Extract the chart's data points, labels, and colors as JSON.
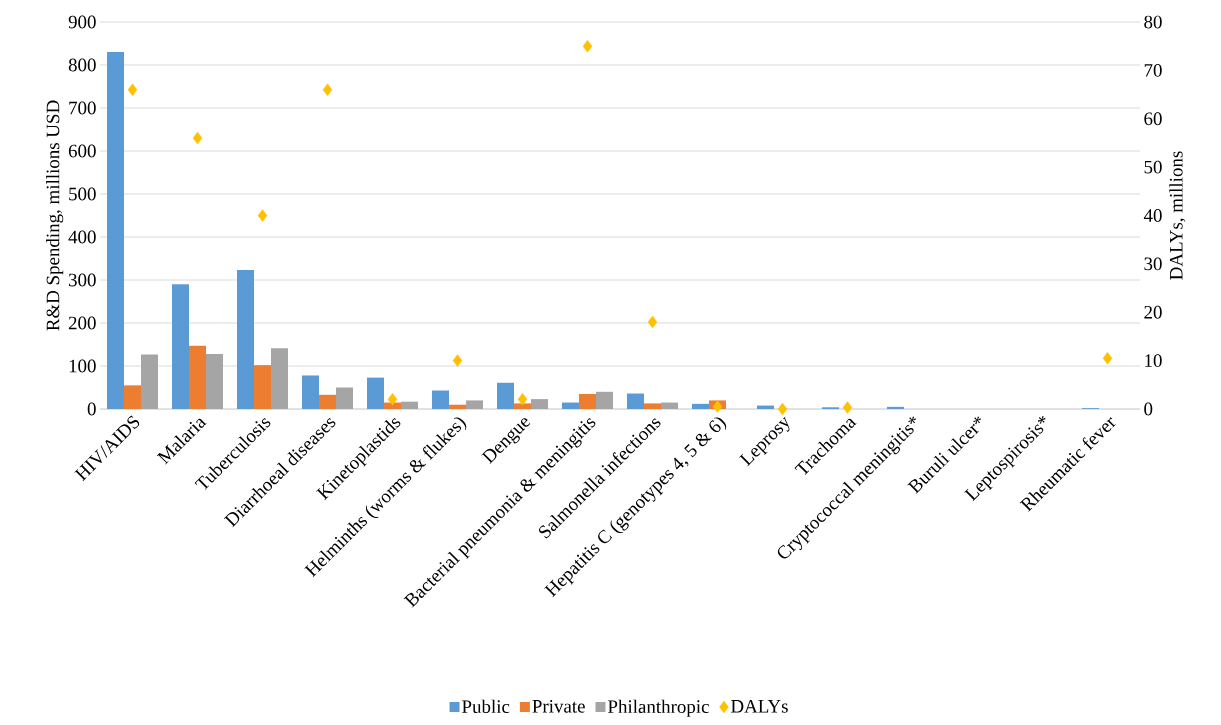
{
  "chart_data": {
    "type": "bar",
    "ylabel": "R&D Spending, millions USD",
    "y2label": "DALYs, millions",
    "categories": [
      "HIV/AIDS",
      "Malaria",
      "Tuberculosis",
      "Diarrhoeal diseases",
      "Kinetoplastids",
      "Helminths (worms & flukes)",
      "Dengue",
      "Bacterial pneumonia & meningitis",
      "Salmonella infections",
      "Hepatitis C (genotypes 4, 5 & 6)",
      "Leprosy",
      "Trachoma",
      "Cryptococcal meningitis*",
      "Buruli ulcer*",
      "Leptospirosis*",
      "Rheumatic fever"
    ],
    "series": [
      {
        "name": "Public",
        "color": "#5b9bd5",
        "values": [
          830,
          290,
          323,
          78,
          73,
          43,
          61,
          15,
          36,
          12,
          8,
          4,
          5,
          0,
          0,
          2
        ]
      },
      {
        "name": "Private",
        "color": "#ed7d31",
        "values": [
          55,
          147,
          102,
          33,
          15,
          10,
          13,
          35,
          13,
          20,
          0,
          0,
          0,
          0,
          0,
          0
        ]
      },
      {
        "name": "Philanthropic",
        "color": "#a5a5a5",
        "values": [
          127,
          128,
          141,
          50,
          17,
          20,
          23,
          40,
          15,
          0,
          0,
          0,
          0,
          0,
          0,
          0
        ]
      },
      {
        "name": "DALYs",
        "type": "scatter",
        "axis": "y2",
        "marker": "diamond",
        "color": "#ffc000",
        "values": [
          66,
          56,
          40,
          66,
          2,
          10,
          2,
          75,
          18,
          0.5,
          0,
          0.3,
          null,
          null,
          null,
          10.5
        ]
      }
    ],
    "ylim": [
      0,
      900
    ],
    "yticks": [
      0,
      100,
      200,
      300,
      400,
      500,
      600,
      700,
      800,
      900
    ],
    "y2lim": [
      0,
      80
    ],
    "y2ticks": [
      0,
      10,
      20,
      30,
      40,
      50,
      60,
      70,
      80
    ],
    "grid": "y",
    "legend": "bottom"
  }
}
